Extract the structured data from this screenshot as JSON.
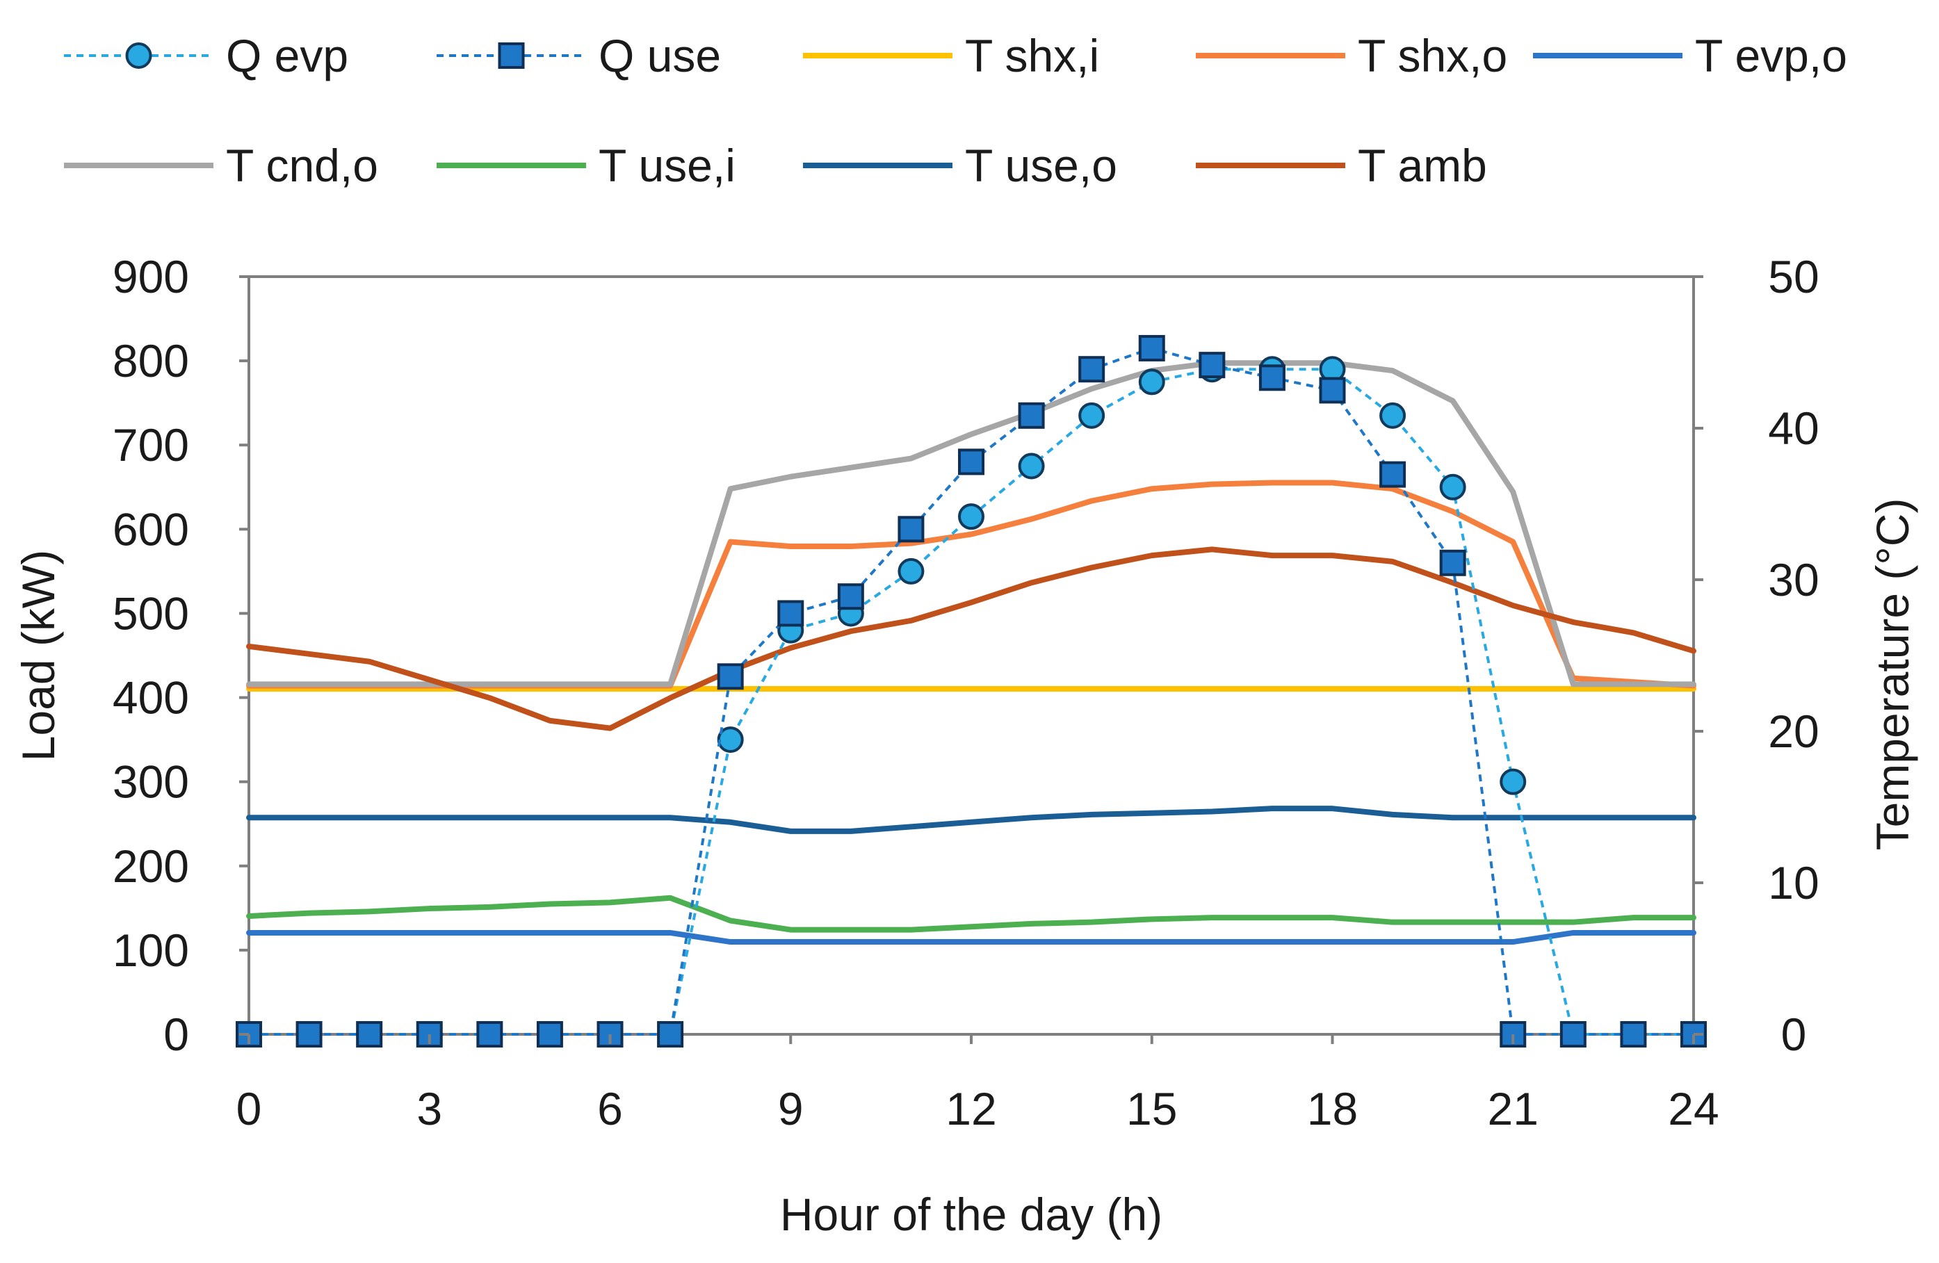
{
  "chart_data": {
    "type": "line",
    "xlabel": "Hour of the day (h)",
    "ylabel_left": "Load (kW)",
    "ylabel_right": "Temperature (°C)",
    "x_range": [
      0,
      24
    ],
    "y_left_range": [
      0,
      900
    ],
    "y_right_range": [
      0,
      50
    ],
    "x_ticks": [
      0,
      3,
      6,
      9,
      12,
      15,
      18,
      21,
      24
    ],
    "y_left_ticks": [
      0,
      100,
      200,
      300,
      400,
      500,
      600,
      700,
      800,
      900
    ],
    "y_right_ticks": [
      0,
      10,
      20,
      30,
      40,
      50
    ],
    "grid": false,
    "legend_position": "top",
    "series": [
      {
        "name": "Q evp",
        "axis": "left",
        "style": "dashed-marker",
        "marker": "circle",
        "color": "#29a9e1",
        "x": [
          0,
          1,
          2,
          3,
          4,
          5,
          6,
          7,
          8,
          9,
          10,
          11,
          12,
          13,
          14,
          15,
          16,
          17,
          18,
          19,
          20,
          21,
          22,
          23,
          24
        ],
        "values": [
          0,
          0,
          0,
          0,
          0,
          0,
          0,
          0,
          350,
          480,
          500,
          550,
          615,
          675,
          735,
          775,
          790,
          790,
          790,
          735,
          650,
          300,
          0,
          0,
          0
        ]
      },
      {
        "name": "Q use",
        "axis": "left",
        "style": "dashed-marker",
        "marker": "square",
        "color": "#1f77c8",
        "x": [
          0,
          1,
          2,
          3,
          4,
          5,
          6,
          7,
          8,
          9,
          10,
          11,
          12,
          13,
          14,
          15,
          16,
          17,
          18,
          19,
          20,
          21,
          22,
          23,
          24
        ],
        "values": [
          0,
          0,
          0,
          0,
          0,
          0,
          0,
          0,
          425,
          500,
          520,
          600,
          680,
          735,
          790,
          815,
          795,
          780,
          765,
          665,
          560,
          0,
          0,
          0,
          0
        ]
      },
      {
        "name": "T shx,i",
        "axis": "right",
        "style": "line",
        "color": "#ffc000",
        "x": [
          0,
          24
        ],
        "values": [
          22.8,
          22.8
        ]
      },
      {
        "name": "T shx,o",
        "axis": "right",
        "style": "line",
        "color": "#f5803e",
        "x": [
          0,
          7,
          8,
          9,
          10,
          11,
          12,
          13,
          14,
          15,
          16,
          17,
          18,
          19,
          20,
          21,
          22,
          24
        ],
        "values": [
          23.0,
          23.0,
          32.5,
          32.2,
          32.2,
          32.4,
          33.0,
          34.0,
          35.2,
          36.0,
          36.3,
          36.4,
          36.4,
          36.0,
          34.5,
          32.5,
          23.5,
          23.0
        ]
      },
      {
        "name": "T evp,o",
        "axis": "right",
        "style": "line",
        "color": "#2e75c9",
        "x": [
          0,
          7,
          8,
          9,
          20,
          21,
          22,
          24
        ],
        "values": [
          6.7,
          6.7,
          6.1,
          6.1,
          6.1,
          6.1,
          6.7,
          6.7
        ]
      },
      {
        "name": "T cnd,o",
        "axis": "right",
        "style": "line",
        "color": "#a6a6a6",
        "x": [
          0,
          7,
          8,
          9,
          10,
          11,
          12,
          13,
          14,
          15,
          16,
          17,
          18,
          19,
          20,
          21,
          22,
          24
        ],
        "values": [
          23.1,
          23.1,
          36.0,
          36.8,
          37.4,
          38.0,
          39.6,
          41.0,
          42.6,
          43.8,
          44.3,
          44.3,
          44.3,
          43.8,
          41.8,
          35.8,
          23.1,
          23.1
        ]
      },
      {
        "name": "T use,i",
        "axis": "right",
        "style": "line",
        "color": "#4caf50",
        "x": [
          0,
          1,
          2,
          3,
          4,
          5,
          6,
          7,
          8,
          9,
          10,
          11,
          12,
          13,
          14,
          15,
          16,
          17,
          18,
          19,
          20,
          21,
          22,
          23,
          24
        ],
        "values": [
          7.8,
          8.0,
          8.1,
          8.3,
          8.4,
          8.6,
          8.7,
          9.0,
          7.5,
          6.9,
          6.9,
          6.9,
          7.1,
          7.3,
          7.4,
          7.6,
          7.7,
          7.7,
          7.7,
          7.4,
          7.4,
          7.4,
          7.4,
          7.7,
          7.7
        ]
      },
      {
        "name": "T use,o",
        "axis": "right",
        "style": "line",
        "color": "#1b5e96",
        "x": [
          0,
          7,
          8,
          9,
          10,
          11,
          12,
          13,
          14,
          15,
          16,
          17,
          18,
          19,
          20,
          24
        ],
        "values": [
          14.3,
          14.3,
          14.0,
          13.4,
          13.4,
          13.7,
          14.0,
          14.3,
          14.5,
          14.6,
          14.7,
          14.9,
          14.9,
          14.5,
          14.3,
          14.3
        ]
      },
      {
        "name": "T amb",
        "axis": "right",
        "style": "line",
        "color": "#c0511a",
        "x": [
          0,
          1,
          2,
          3,
          4,
          5,
          6,
          7,
          8,
          9,
          10,
          11,
          12,
          13,
          14,
          15,
          16,
          17,
          18,
          19,
          20,
          21,
          22,
          23,
          24
        ],
        "values": [
          25.6,
          25.1,
          24.6,
          23.4,
          22.2,
          20.7,
          20.2,
          22.2,
          24.0,
          25.5,
          26.6,
          27.3,
          28.5,
          29.8,
          30.8,
          31.6,
          32.0,
          31.6,
          31.6,
          31.2,
          29.8,
          28.3,
          27.2,
          26.5,
          25.3
        ]
      }
    ]
  }
}
